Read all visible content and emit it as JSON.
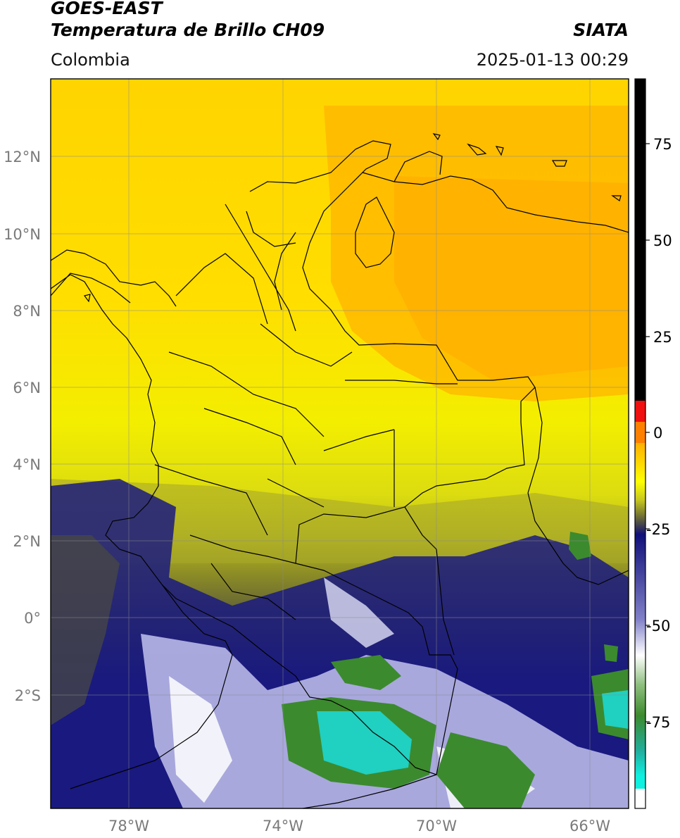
{
  "header": {
    "line1": "GOES-EAST",
    "line2": "Temperatura de Brillo CH09",
    "brand": "SIATA",
    "region": "Colombia",
    "timestamp": "2025-01-13 00:29"
  },
  "map": {
    "lat_ticks": [
      "12°N",
      "10°N",
      "8°N",
      "6°N",
      "4°N",
      "2°N",
      "0°",
      "2°S"
    ],
    "lon_ticks": [
      "78°W",
      "74°W",
      "70°W",
      "66°W"
    ]
  },
  "colorbar": {
    "ticks": [
      "75",
      "50",
      "25",
      "0",
      "-25",
      "-50",
      "-75"
    ],
    "colors": {
      "black": "#000000",
      "red": "#f01010",
      "orange": "#ffa500",
      "yellow": "#ffee00",
      "olive": "#8b8b26",
      "navy": "#10107a",
      "white": "#ffffff",
      "green": "#3c8a2e",
      "cyan": "#20e0d0"
    }
  }
}
